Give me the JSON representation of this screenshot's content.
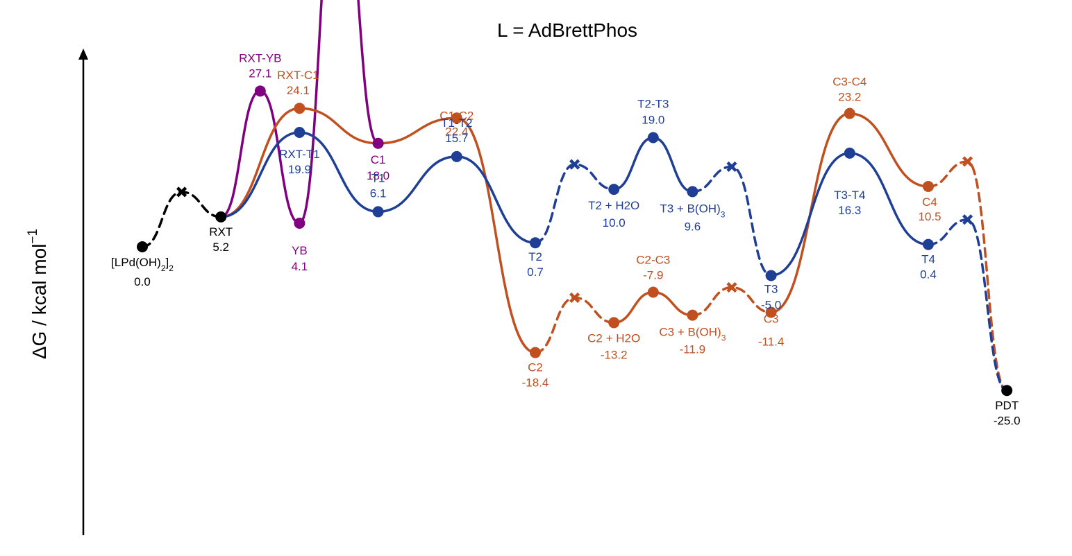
{
  "chart_data": {
    "type": "line",
    "title": "L = AdBrettPhos",
    "ylabel": "ΔG / kcal mol",
    "ylabel_sup": "−1",
    "y_axis_ticks": "none",
    "colors": {
      "black": "#000000",
      "purple": "#800080",
      "orange": "#C0501F",
      "blue": "#1F3F96"
    },
    "points": {
      "start": {
        "x": 0,
        "y": 0.0,
        "label": "[LPd(OH)2]2",
        "value": "0.0"
      },
      "rxt": {
        "x": 2,
        "y": 5.2,
        "label": "RXT",
        "value": "5.2"
      },
      "pdt": {
        "x": 22,
        "y": -25.0,
        "label": "PDT",
        "value": "-25.0"
      },
      "rxt_yb": {
        "x": 3,
        "y": 27.1,
        "label": "RXT-YB",
        "value": "27.1"
      },
      "yb": {
        "x": 4,
        "y": 4.1,
        "label": "YB",
        "value": "4.1"
      },
      "rxt_c1": {
        "x": 4,
        "y": 24.1,
        "label": "RXT-C1",
        "value": "24.1"
      },
      "c1": {
        "x": 6,
        "y": 18.0,
        "label": "C1",
        "value": "18.0"
      },
      "c1_c2": {
        "x": 8,
        "y": 22.4,
        "label": "C1-C2",
        "value": "22.4"
      },
      "c2": {
        "x": 10,
        "y": -18.4,
        "label": "C2",
        "value": "-18.4"
      },
      "c2_h2o": {
        "x": 12,
        "y": -13.2,
        "label": "C2 + H2O",
        "value": "-13.2"
      },
      "c2_c3": {
        "x": 13,
        "y": -7.9,
        "label": "C2-C3",
        "value": "-7.9"
      },
      "c3_boh": {
        "x": 14,
        "y": -11.9,
        "label": "C3 + B(OH)3",
        "value": "-11.9"
      },
      "c3": {
        "x": 16,
        "y": -11.4,
        "label": "C3",
        "value": "-11.4"
      },
      "c3_c4": {
        "x": 18,
        "y": 23.2,
        "label": "C3-C4",
        "value": "23.2"
      },
      "c4": {
        "x": 20,
        "y": 10.5,
        "label": "C4",
        "value": "10.5"
      },
      "rxt_t1": {
        "x": 4,
        "y": 19.9,
        "label": "RXT-T1",
        "value": "19.9"
      },
      "t1": {
        "x": 6,
        "y": 6.1,
        "label": "T1",
        "value": "6.1"
      },
      "t1_t2": {
        "x": 8,
        "y": 15.7,
        "label": "T1-T2",
        "value": "15.7"
      },
      "t2": {
        "x": 10,
        "y": 0.7,
        "label": "T2",
        "value": "0.7"
      },
      "t2_h2o": {
        "x": 12,
        "y": 10.0,
        "label": "T2 + H2O",
        "value": "10.0"
      },
      "t2_t3": {
        "x": 13,
        "y": 19.0,
        "label": "T2-T3",
        "value": "19.0"
      },
      "t3_boh": {
        "x": 14,
        "y": 9.6,
        "label": "T3 + B(OH)3",
        "value": "9.6"
      },
      "t3": {
        "x": 16,
        "y": -5.0,
        "label": "T3",
        "value": "-5.0"
      },
      "t3_t4": {
        "x": 18,
        "y": 16.3,
        "label": "T3-T4",
        "value": "16.3"
      },
      "t4": {
        "x": 20,
        "y": 0.4,
        "label": "T4",
        "value": "0.4"
      }
    },
    "series": [
      {
        "color": "black",
        "segments": [
          {
            "from": "start",
            "to": "rxt",
            "dashed": true,
            "via_cross": true
          }
        ]
      },
      {
        "color": "purple",
        "segments": [
          {
            "path": [
              "rxt",
              "rxt_yb",
              "yb"
            ],
            "dashed": false
          },
          {
            "path": [
              "yb",
              "c1"
            ],
            "dashed": false,
            "off_scale": true
          }
        ]
      },
      {
        "color": "orange",
        "segments": [
          {
            "path": [
              "rxt",
              "rxt_c1",
              "c1",
              "c1_c2",
              "c2"
            ],
            "dashed": false
          },
          {
            "from": "c2",
            "to": "c2_h2o",
            "dashed": true,
            "via_cross": true
          },
          {
            "path": [
              "c2_h2o",
              "c2_c3",
              "c3_boh"
            ],
            "dashed": false
          },
          {
            "from": "c3_boh",
            "to": "c3",
            "dashed": true,
            "via_cross": true
          },
          {
            "path": [
              "c3",
              "c3_c4",
              "c4"
            ],
            "dashed": false
          },
          {
            "from": "c4",
            "to": "pdt",
            "dashed": true,
            "via_cross": true
          }
        ]
      },
      {
        "color": "blue",
        "segments": [
          {
            "path": [
              "rxt",
              "rxt_t1",
              "t1",
              "t1_t2",
              "t2"
            ],
            "dashed": false
          },
          {
            "from": "t2",
            "to": "t2_h2o",
            "dashed": true,
            "via_cross": true
          },
          {
            "path": [
              "t2_h2o",
              "t2_t3",
              "t3_boh"
            ],
            "dashed": false
          },
          {
            "from": "t3_boh",
            "to": "t3",
            "dashed": true,
            "via_cross": true
          },
          {
            "path": [
              "t3",
              "t3_t4",
              "t4"
            ],
            "dashed": false
          },
          {
            "from": "t4",
            "to": "pdt",
            "dashed": true,
            "via_cross": true
          }
        ]
      }
    ]
  }
}
